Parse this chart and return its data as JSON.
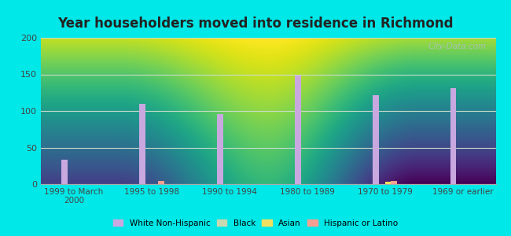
{
  "title": "Year householders moved into residence in Richmond",
  "categories": [
    "1999 to March\n2000",
    "1995 to 1998",
    "1990 to 1994",
    "1980 to 1989",
    "1970 to 1979",
    "1969 or earlier"
  ],
  "series": {
    "White Non-Hispanic": [
      33,
      110,
      96,
      148,
      121,
      131
    ],
    "Black": [
      0,
      0,
      0,
      0,
      0,
      0
    ],
    "Asian": [
      0,
      0,
      0,
      0,
      3,
      0
    ],
    "Hispanic or Latino": [
      0,
      4,
      0,
      0,
      4,
      0
    ]
  },
  "colors": {
    "White Non-Hispanic": "#c9a8e0",
    "Black": "#c8d8b0",
    "Asian": "#f0e060",
    "Hispanic or Latino": "#f4a090"
  },
  "ylim": [
    0,
    200
  ],
  "yticks": [
    0,
    50,
    100,
    150,
    200
  ],
  "background_outer": "#00e8e8",
  "watermark": "City-Data.com",
  "bar_width": 0.08
}
